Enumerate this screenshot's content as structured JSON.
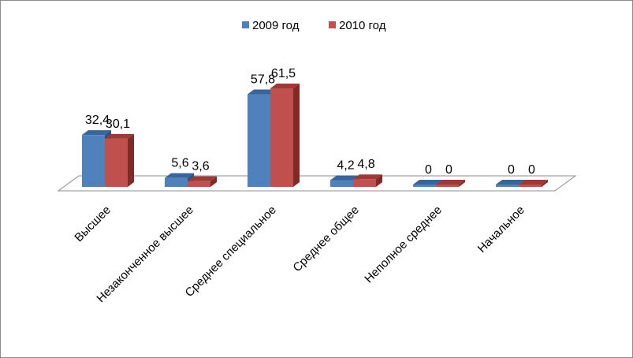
{
  "chart_data": {
    "type": "bar",
    "title": "",
    "xlabel": "",
    "ylabel": "",
    "categories": [
      "Высшее",
      "Незаконченное высшее",
      "Среднее специальное",
      "Среднее общее",
      "Неполное среднее",
      "Начальное"
    ],
    "series": [
      {
        "name": "2009 год",
        "values": [
          32.4,
          5.6,
          57.8,
          4.2,
          0,
          0
        ],
        "labels": [
          "32,4",
          "5,6",
          "57,8",
          "4,2",
          "0",
          "0"
        ]
      },
      {
        "name": "2010 год",
        "values": [
          30.1,
          3.6,
          61.5,
          4.8,
          0,
          0
        ],
        "labels": [
          "30,1",
          "3,6",
          "61,5",
          "4,8",
          "0",
          "0"
        ]
      }
    ],
    "ylim": [
      0,
      61.5
    ],
    "grid": false,
    "legend_position": "top",
    "style": "3d-clustered",
    "colors": {
      "series_front": [
        "#4f81bd",
        "#c0504d"
      ],
      "series_top": [
        "#3a6598",
        "#9b3a37"
      ],
      "series_side": [
        "#2e5283",
        "#7f2b28"
      ],
      "floor": "#ffffff",
      "floor_stroke": "#8c8c8c"
    }
  }
}
